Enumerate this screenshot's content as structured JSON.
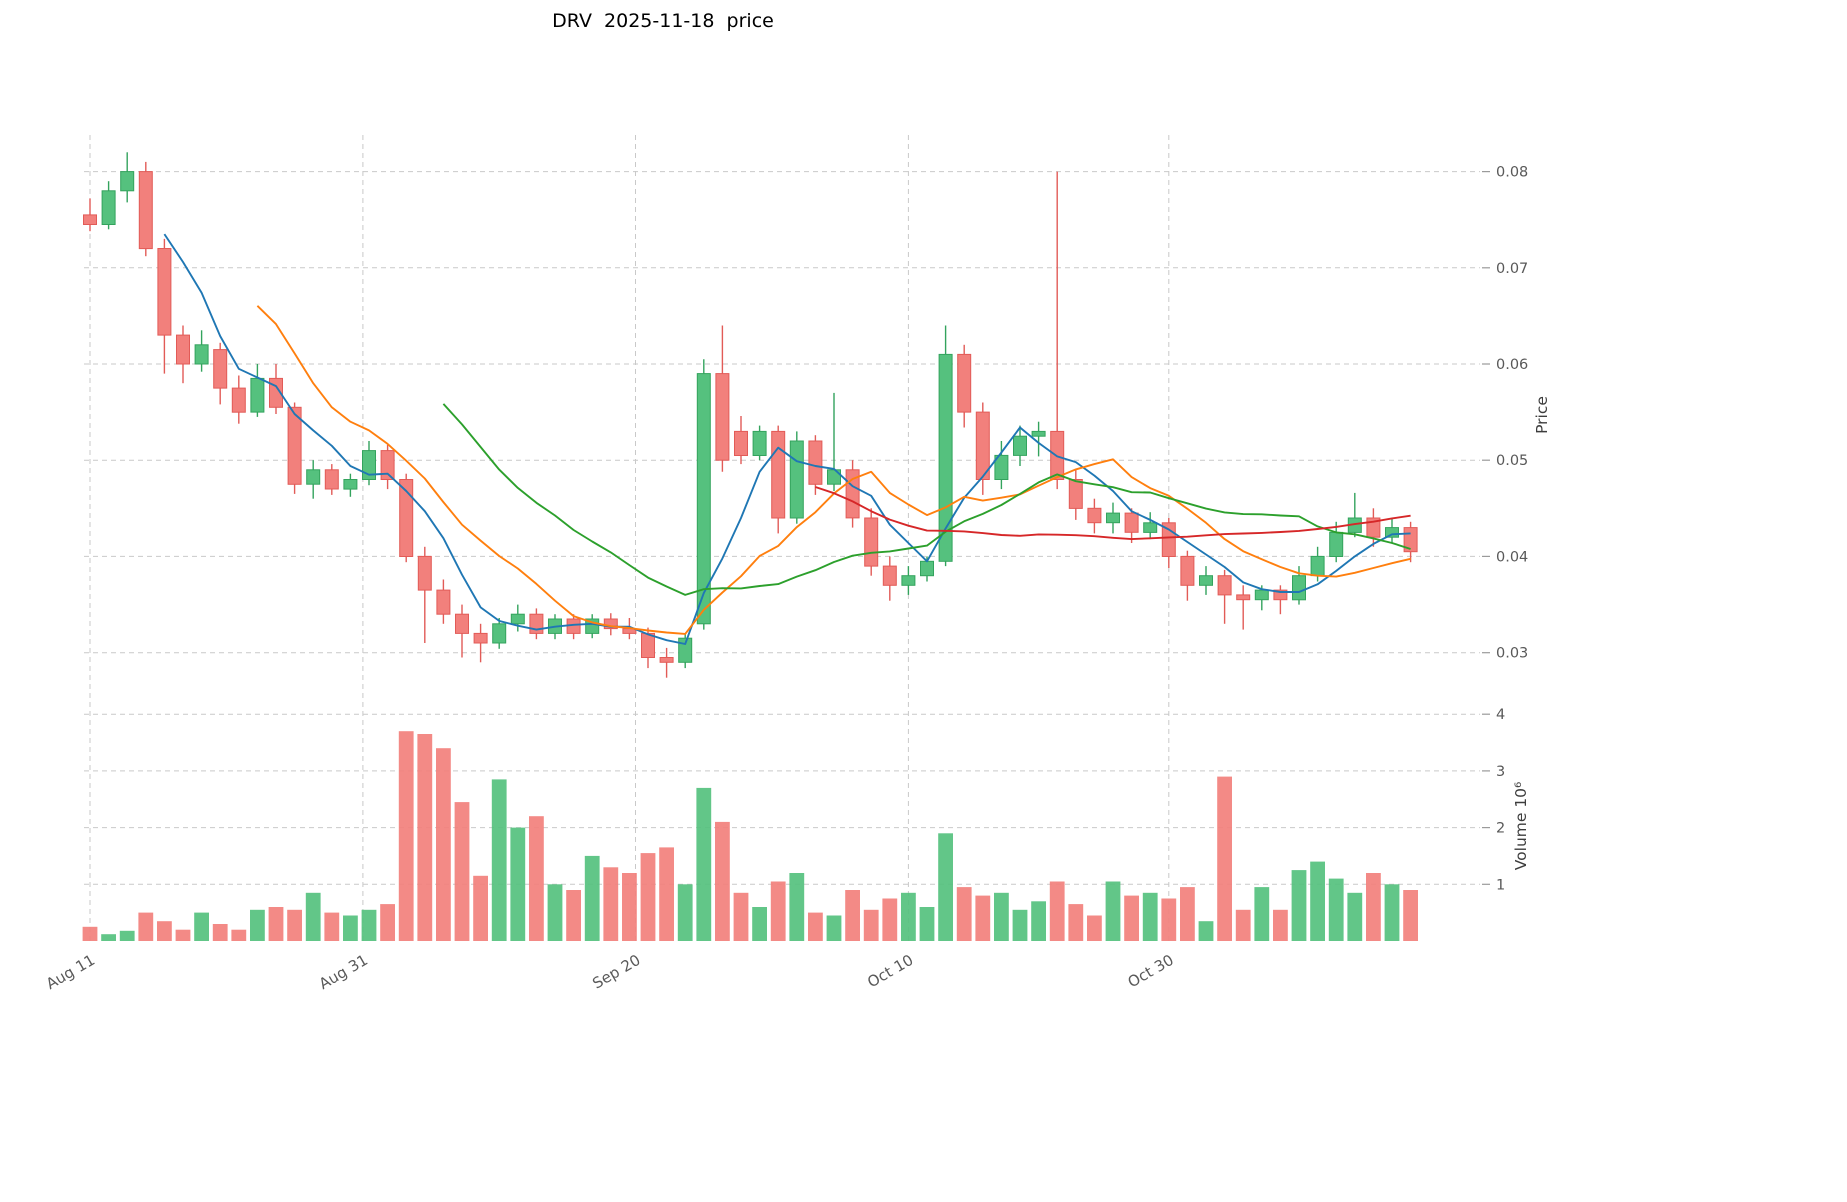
{
  "title": "DRV  2025-11-18  price",
  "chart_data": {
    "type": "candlestick",
    "symbol": "DRV",
    "as_of_date": "2025-11-18",
    "panels": [
      "price",
      "volume"
    ],
    "x_ticks": [
      {
        "label": "Aug 11",
        "index": 0
      },
      {
        "label": "Aug 31",
        "index": 14.67
      },
      {
        "label": "Sep 20",
        "index": 29.33
      },
      {
        "label": "Oct 10",
        "index": 44
      },
      {
        "label": "Oct 30",
        "index": 58
      }
    ],
    "price_axis": {
      "label": "Price",
      "ticks": [
        0.03,
        0.04,
        0.05,
        0.06,
        0.07,
        0.08
      ],
      "range": [
        0.0256,
        0.0838
      ]
    },
    "volume_axis": {
      "label": "Volume  10⁶",
      "ticks": [
        1,
        2,
        3,
        4
      ],
      "range": [
        0,
        4.25
      ]
    },
    "overlays": [
      {
        "name": "ma-short",
        "kind": "sma",
        "period": 5,
        "color": "#1f77b4"
      },
      {
        "name": "ma-medium",
        "kind": "sma",
        "period": 10,
        "color": "#ff7f0e"
      },
      {
        "name": "ma-long",
        "kind": "sma",
        "period": 20,
        "color": "#2ca02c"
      },
      {
        "name": "ma-longest",
        "kind": "sma",
        "period": 40,
        "color": "#d62728"
      }
    ],
    "style": {
      "up": "#55c17e",
      "up_edge": "#33a35d",
      "down": "#f2807c",
      "down_edge": "#e25b57",
      "grid": "#c9c9c9",
      "tick_text": "#595959",
      "label_text": "#3d3d3d",
      "title_text": "#000000"
    },
    "candles": [
      {
        "d": "2025-08-11",
        "o": 0.0755,
        "h": 0.0772,
        "l": 0.0738,
        "c": 0.0745,
        "v": 0.25
      },
      {
        "d": "2025-08-12",
        "o": 0.0745,
        "h": 0.079,
        "l": 0.074,
        "c": 0.078,
        "v": 0.12
      },
      {
        "d": "2025-08-13",
        "o": 0.078,
        "h": 0.082,
        "l": 0.0768,
        "c": 0.08,
        "v": 0.18
      },
      {
        "d": "2025-08-14",
        "o": 0.08,
        "h": 0.081,
        "l": 0.0712,
        "c": 0.072,
        "v": 0.5
      },
      {
        "d": "2025-08-15",
        "o": 0.072,
        "h": 0.073,
        "l": 0.059,
        "c": 0.063,
        "v": 0.35
      },
      {
        "d": "2025-08-18",
        "o": 0.063,
        "h": 0.064,
        "l": 0.058,
        "c": 0.06,
        "v": 0.2
      },
      {
        "d": "2025-08-19",
        "o": 0.06,
        "h": 0.0635,
        "l": 0.0592,
        "c": 0.062,
        "v": 0.5
      },
      {
        "d": "2025-08-20",
        "o": 0.0615,
        "h": 0.0622,
        "l": 0.0558,
        "c": 0.0575,
        "v": 0.3
      },
      {
        "d": "2025-08-21",
        "o": 0.0575,
        "h": 0.0588,
        "l": 0.0538,
        "c": 0.055,
        "v": 0.2
      },
      {
        "d": "2025-08-22",
        "o": 0.055,
        "h": 0.06,
        "l": 0.0545,
        "c": 0.0585,
        "v": 0.55
      },
      {
        "d": "2025-08-25",
        "o": 0.0585,
        "h": 0.06,
        "l": 0.0548,
        "c": 0.0555,
        "v": 0.6
      },
      {
        "d": "2025-08-26",
        "o": 0.0555,
        "h": 0.056,
        "l": 0.0465,
        "c": 0.0475,
        "v": 0.55
      },
      {
        "d": "2025-08-27",
        "o": 0.0475,
        "h": 0.05,
        "l": 0.046,
        "c": 0.049,
        "v": 0.85
      },
      {
        "d": "2025-08-28",
        "o": 0.049,
        "h": 0.0496,
        "l": 0.0464,
        "c": 0.047,
        "v": 0.5
      },
      {
        "d": "2025-08-29",
        "o": 0.047,
        "h": 0.0486,
        "l": 0.0462,
        "c": 0.048,
        "v": 0.45
      },
      {
        "d": "2025-09-01",
        "o": 0.048,
        "h": 0.052,
        "l": 0.0474,
        "c": 0.051,
        "v": 0.55
      },
      {
        "d": "2025-09-02",
        "o": 0.051,
        "h": 0.0516,
        "l": 0.047,
        "c": 0.048,
        "v": 0.65
      },
      {
        "d": "2025-09-03",
        "o": 0.048,
        "h": 0.0486,
        "l": 0.0394,
        "c": 0.04,
        "v": 3.7
      },
      {
        "d": "2025-09-04",
        "o": 0.04,
        "h": 0.041,
        "l": 0.031,
        "c": 0.0365,
        "v": 3.65
      },
      {
        "d": "2025-09-05",
        "o": 0.0365,
        "h": 0.0376,
        "l": 0.033,
        "c": 0.034,
        "v": 3.4
      },
      {
        "d": "2025-09-08",
        "o": 0.034,
        "h": 0.035,
        "l": 0.0295,
        "c": 0.032,
        "v": 2.45
      },
      {
        "d": "2025-09-09",
        "o": 0.032,
        "h": 0.033,
        "l": 0.029,
        "c": 0.031,
        "v": 1.15
      },
      {
        "d": "2025-09-10",
        "o": 0.031,
        "h": 0.0336,
        "l": 0.0304,
        "c": 0.033,
        "v": 2.85
      },
      {
        "d": "2025-09-11",
        "o": 0.033,
        "h": 0.035,
        "l": 0.0322,
        "c": 0.034,
        "v": 2.0
      },
      {
        "d": "2025-09-12",
        "o": 0.034,
        "h": 0.0346,
        "l": 0.0314,
        "c": 0.032,
        "v": 2.2
      },
      {
        "d": "2025-09-15",
        "o": 0.032,
        "h": 0.034,
        "l": 0.0314,
        "c": 0.0335,
        "v": 1.0
      },
      {
        "d": "2025-09-16",
        "o": 0.0335,
        "h": 0.034,
        "l": 0.0314,
        "c": 0.032,
        "v": 0.9
      },
      {
        "d": "2025-09-17",
        "o": 0.032,
        "h": 0.034,
        "l": 0.0315,
        "c": 0.0335,
        "v": 1.5
      },
      {
        "d": "2025-09-18",
        "o": 0.0335,
        "h": 0.0341,
        "l": 0.0318,
        "c": 0.0325,
        "v": 1.3
      },
      {
        "d": "2025-09-19",
        "o": 0.0325,
        "h": 0.0336,
        "l": 0.0314,
        "c": 0.032,
        "v": 1.2
      },
      {
        "d": "2025-09-22",
        "o": 0.032,
        "h": 0.0326,
        "l": 0.0284,
        "c": 0.0295,
        "v": 1.55
      },
      {
        "d": "2025-09-23",
        "o": 0.0295,
        "h": 0.0305,
        "l": 0.0274,
        "c": 0.029,
        "v": 1.65
      },
      {
        "d": "2025-09-24",
        "o": 0.029,
        "h": 0.032,
        "l": 0.0284,
        "c": 0.0315,
        "v": 1.0
      },
      {
        "d": "2025-09-25",
        "o": 0.033,
        "h": 0.0605,
        "l": 0.0324,
        "c": 0.059,
        "v": 2.7
      },
      {
        "d": "2025-09-26",
        "o": 0.059,
        "h": 0.064,
        "l": 0.0488,
        "c": 0.05,
        "v": 2.1
      },
      {
        "d": "2025-09-29",
        "o": 0.053,
        "h": 0.0546,
        "l": 0.0496,
        "c": 0.0505,
        "v": 0.85
      },
      {
        "d": "2025-09-30",
        "o": 0.0505,
        "h": 0.0536,
        "l": 0.05,
        "c": 0.053,
        "v": 0.6
      },
      {
        "d": "2025-10-01",
        "o": 0.053,
        "h": 0.0536,
        "l": 0.0424,
        "c": 0.044,
        "v": 1.05
      },
      {
        "d": "2025-10-02",
        "o": 0.044,
        "h": 0.053,
        "l": 0.0434,
        "c": 0.052,
        "v": 1.2
      },
      {
        "d": "2025-10-03",
        "o": 0.052,
        "h": 0.0526,
        "l": 0.0464,
        "c": 0.0475,
        "v": 0.5
      },
      {
        "d": "2025-10-06",
        "o": 0.0475,
        "h": 0.057,
        "l": 0.0468,
        "c": 0.049,
        "v": 0.45
      },
      {
        "d": "2025-10-07",
        "o": 0.049,
        "h": 0.05,
        "l": 0.043,
        "c": 0.044,
        "v": 0.9
      },
      {
        "d": "2025-10-08",
        "o": 0.044,
        "h": 0.045,
        "l": 0.038,
        "c": 0.039,
        "v": 0.55
      },
      {
        "d": "2025-10-09",
        "o": 0.039,
        "h": 0.04,
        "l": 0.0354,
        "c": 0.037,
        "v": 0.75
      },
      {
        "d": "2025-10-10",
        "o": 0.037,
        "h": 0.039,
        "l": 0.036,
        "c": 0.038,
        "v": 0.85
      },
      {
        "d": "2025-10-13",
        "o": 0.038,
        "h": 0.04,
        "l": 0.0374,
        "c": 0.0395,
        "v": 0.6
      },
      {
        "d": "2025-10-14",
        "o": 0.0395,
        "h": 0.064,
        "l": 0.039,
        "c": 0.061,
        "v": 1.9
      },
      {
        "d": "2025-10-15",
        "o": 0.061,
        "h": 0.062,
        "l": 0.0534,
        "c": 0.055,
        "v": 0.95
      },
      {
        "d": "2025-10-16",
        "o": 0.055,
        "h": 0.056,
        "l": 0.0464,
        "c": 0.048,
        "v": 0.8
      },
      {
        "d": "2025-10-17",
        "o": 0.048,
        "h": 0.052,
        "l": 0.047,
        "c": 0.0505,
        "v": 0.85
      },
      {
        "d": "2025-10-20",
        "o": 0.0505,
        "h": 0.0536,
        "l": 0.0494,
        "c": 0.0525,
        "v": 0.55
      },
      {
        "d": "2025-10-21",
        "o": 0.0525,
        "h": 0.054,
        "l": 0.0504,
        "c": 0.053,
        "v": 0.7
      },
      {
        "d": "2025-10-22",
        "o": 0.053,
        "h": 0.08,
        "l": 0.047,
        "c": 0.048,
        "v": 1.05
      },
      {
        "d": "2025-10-23",
        "o": 0.048,
        "h": 0.049,
        "l": 0.0438,
        "c": 0.045,
        "v": 0.65
      },
      {
        "d": "2025-10-24",
        "o": 0.045,
        "h": 0.046,
        "l": 0.0424,
        "c": 0.0435,
        "v": 0.45
      },
      {
        "d": "2025-10-27",
        "o": 0.0435,
        "h": 0.0456,
        "l": 0.0424,
        "c": 0.0445,
        "v": 1.05
      },
      {
        "d": "2025-10-28",
        "o": 0.0445,
        "h": 0.045,
        "l": 0.0414,
        "c": 0.0425,
        "v": 0.8
      },
      {
        "d": "2025-10-29",
        "o": 0.0425,
        "h": 0.0446,
        "l": 0.0418,
        "c": 0.0435,
        "v": 0.85
      },
      {
        "d": "2025-10-30",
        "o": 0.0435,
        "h": 0.044,
        "l": 0.0388,
        "c": 0.04,
        "v": 0.75
      },
      {
        "d": "2025-10-31",
        "o": 0.04,
        "h": 0.0406,
        "l": 0.0354,
        "c": 0.037,
        "v": 0.95
      },
      {
        "d": "2025-11-03",
        "o": 0.037,
        "h": 0.039,
        "l": 0.036,
        "c": 0.038,
        "v": 0.35
      },
      {
        "d": "2025-11-04",
        "o": 0.038,
        "h": 0.0386,
        "l": 0.033,
        "c": 0.036,
        "v": 2.9
      },
      {
        "d": "2025-11-05",
        "o": 0.036,
        "h": 0.037,
        "l": 0.0324,
        "c": 0.0355,
        "v": 0.55
      },
      {
        "d": "2025-11-06",
        "o": 0.0355,
        "h": 0.037,
        "l": 0.0344,
        "c": 0.0365,
        "v": 0.95
      },
      {
        "d": "2025-11-07",
        "o": 0.0365,
        "h": 0.037,
        "l": 0.034,
        "c": 0.0355,
        "v": 0.55
      },
      {
        "d": "2025-11-10",
        "o": 0.0355,
        "h": 0.039,
        "l": 0.035,
        "c": 0.038,
        "v": 1.25
      },
      {
        "d": "2025-11-11",
        "o": 0.038,
        "h": 0.041,
        "l": 0.0374,
        "c": 0.04,
        "v": 1.4
      },
      {
        "d": "2025-11-12",
        "o": 0.04,
        "h": 0.0436,
        "l": 0.0394,
        "c": 0.0425,
        "v": 1.1
      },
      {
        "d": "2025-11-13",
        "o": 0.0425,
        "h": 0.0466,
        "l": 0.042,
        "c": 0.044,
        "v": 0.85
      },
      {
        "d": "2025-11-14",
        "o": 0.044,
        "h": 0.045,
        "l": 0.041,
        "c": 0.042,
        "v": 1.2
      },
      {
        "d": "2025-11-17",
        "o": 0.042,
        "h": 0.044,
        "l": 0.0414,
        "c": 0.043,
        "v": 1.0
      },
      {
        "d": "2025-11-18",
        "o": 0.043,
        "h": 0.0436,
        "l": 0.0394,
        "c": 0.0405,
        "v": 0.9
      }
    ]
  }
}
